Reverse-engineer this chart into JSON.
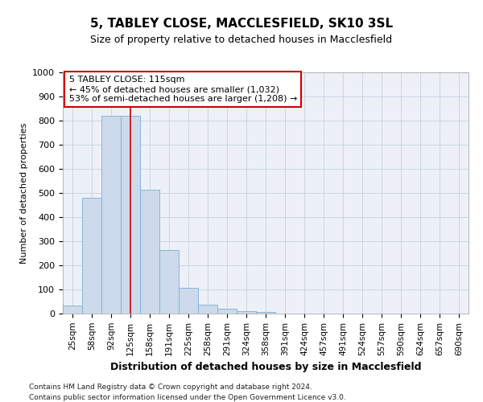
{
  "title1": "5, TABLEY CLOSE, MACCLESFIELD, SK10 3SL",
  "title2": "Size of property relative to detached houses in Macclesfield",
  "xlabel": "Distribution of detached houses by size in Macclesfield",
  "ylabel": "Number of detached properties",
  "bar_color": "#ccdaeb",
  "bar_edge_color": "#7aafd4",
  "categories": [
    "25sqm",
    "58sqm",
    "92sqm",
    "125sqm",
    "158sqm",
    "191sqm",
    "225sqm",
    "258sqm",
    "291sqm",
    "324sqm",
    "358sqm",
    "391sqm",
    "424sqm",
    "457sqm",
    "491sqm",
    "524sqm",
    "557sqm",
    "590sqm",
    "624sqm",
    "657sqm",
    "690sqm"
  ],
  "values": [
    35,
    480,
    820,
    820,
    515,
    265,
    108,
    38,
    20,
    10,
    8,
    0,
    0,
    0,
    0,
    0,
    0,
    0,
    0,
    0,
    0
  ],
  "vline_position": 3.5,
  "vline_color": "#cc0000",
  "annotation_text": "5 TABLEY CLOSE: 115sqm\n← 45% of detached houses are smaller (1,032)\n53% of semi-detached houses are larger (1,208) →",
  "annotation_box_color": "#cc0000",
  "ylim": [
    0,
    1000
  ],
  "yticks": [
    0,
    100,
    200,
    300,
    400,
    500,
    600,
    700,
    800,
    900,
    1000
  ],
  "footer1": "Contains HM Land Registry data © Crown copyright and database right 2024.",
  "footer2": "Contains public sector information licensed under the Open Government Licence v3.0.",
  "grid_color": "#c5d0e0",
  "bg_color": "#edf1f7"
}
